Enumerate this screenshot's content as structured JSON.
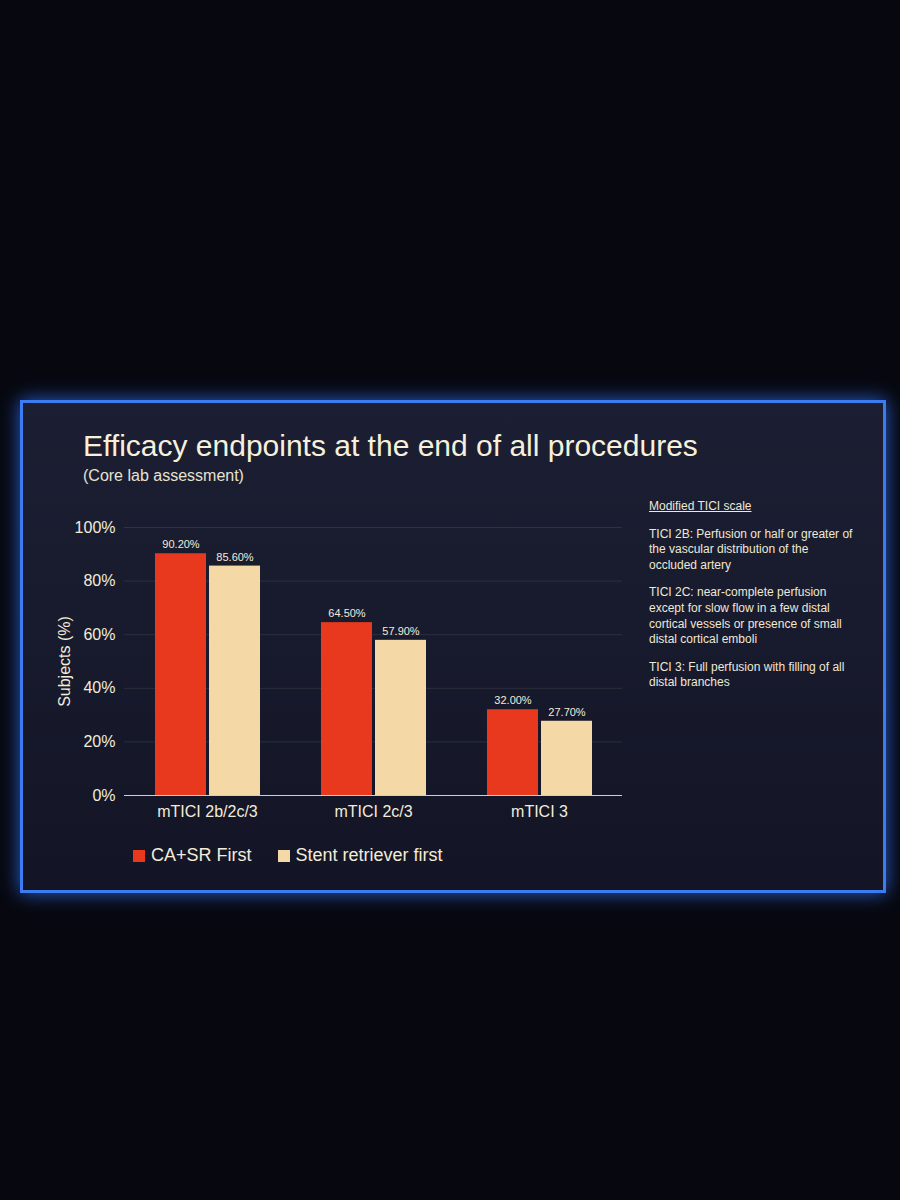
{
  "chart_data": {
    "type": "bar",
    "title": "Efficacy endpoints at the end of all procedures",
    "subtitle": "(Core lab assessment)",
    "y_label": "Subjects (%)",
    "categories": [
      "mTICI 2b/2c/3",
      "mTICI 2c/3",
      "mTICI 3"
    ],
    "series": [
      {
        "name": "CA+SR First",
        "color": "#e8391f",
        "values": [
          90.2,
          64.5,
          32.0
        ],
        "value_labels": [
          "90.20%",
          "64.50%",
          "32.00%"
        ]
      },
      {
        "name": "Stent retriever first",
        "color": "#f4d9a6",
        "values": [
          85.6,
          57.9,
          27.7
        ],
        "value_labels": [
          "85.60%",
          "57.90%",
          "27.70%"
        ]
      }
    ],
    "ylim": [
      0,
      100
    ],
    "yticks": [
      {
        "value": 0,
        "label": "0%"
      },
      {
        "value": 20,
        "label": "20%"
      },
      {
        "value": 40,
        "label": "40%"
      },
      {
        "value": 60,
        "label": "60%"
      },
      {
        "value": 80,
        "label": "80%"
      },
      {
        "value": 100,
        "label": "100%"
      }
    ],
    "grid": true,
    "legend": "bottom",
    "data_labels": true,
    "annotations": [
      "Modified TICI scale",
      "TICI 2B: Perfusion or half or greater of the vascular distribution of the occluded artery",
      "TICI 2C: near-complete perfusion except for slow flow in a few distal cortical vessels or presence of small distal cortical emboli",
      "TICI 3: Full perfusion with filling of all distal branches"
    ]
  }
}
